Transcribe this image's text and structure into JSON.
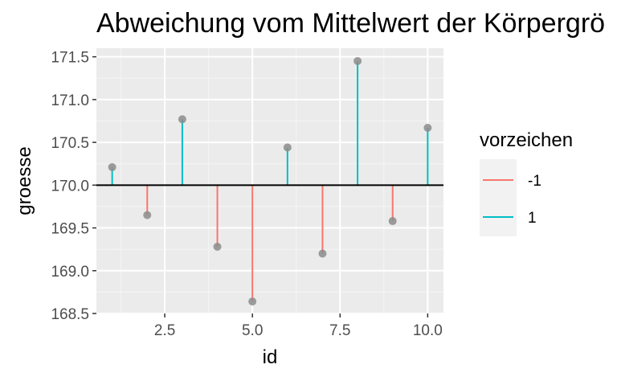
{
  "chart_data": {
    "type": "scatter",
    "title": "Abweichung vom Mittelwert der Körpergrö",
    "xlabel": "id",
    "ylabel": "groesse",
    "xlim": [
      0.55,
      10.45
    ],
    "ylim": [
      168.5,
      171.6
    ],
    "x_ticks": [
      2.5,
      5.0,
      7.5,
      10.0
    ],
    "x_tick_labels": [
      "2.5",
      "5.0",
      "7.5",
      "10.0"
    ],
    "y_ticks": [
      168.5,
      169.0,
      169.5,
      170.0,
      170.5,
      171.0,
      171.5
    ],
    "y_tick_labels": [
      "168.5",
      "169.0",
      "169.5",
      "170.0",
      "170.5",
      "171.0",
      "171.5"
    ],
    "baseline": 170.0,
    "grid": true,
    "legend_position": "right",
    "points": [
      {
        "id": 1,
        "groesse": 170.21,
        "vorzeichen": "1"
      },
      {
        "id": 2,
        "groesse": 169.65,
        "vorzeichen": "-1"
      },
      {
        "id": 3,
        "groesse": 170.77,
        "vorzeichen": "1"
      },
      {
        "id": 4,
        "groesse": 169.28,
        "vorzeichen": "-1"
      },
      {
        "id": 5,
        "groesse": 168.64,
        "vorzeichen": "-1"
      },
      {
        "id": 6,
        "groesse": 170.44,
        "vorzeichen": "1"
      },
      {
        "id": 7,
        "groesse": 169.2,
        "vorzeichen": "-1"
      },
      {
        "id": 8,
        "groesse": 171.45,
        "vorzeichen": "1"
      },
      {
        "id": 9,
        "groesse": 169.58,
        "vorzeichen": "-1"
      },
      {
        "id": 10,
        "groesse": 170.67,
        "vorzeichen": "1"
      }
    ],
    "legend": {
      "title": "vorzeichen",
      "entries": [
        {
          "label": "-1",
          "color": "#f8766d"
        },
        {
          "label": "1",
          "color": "#00bfc4"
        }
      ]
    },
    "colors": {
      "panel_bg": "#ebebeb",
      "grid_major": "#ffffff",
      "grid_minor": "#f5f5f5",
      "baseline": "#000000",
      "point": "#8c8c8c"
    }
  }
}
